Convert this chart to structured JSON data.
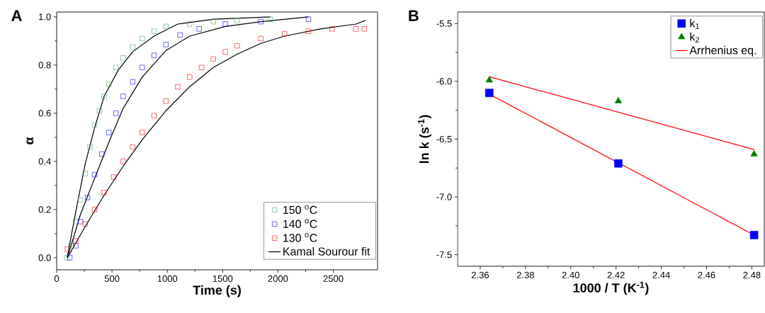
{
  "chart_data": [
    {
      "type": "scatter",
      "title": "A",
      "xlabel": "Time (s)",
      "ylabel": "α",
      "xlim": [
        0,
        2900
      ],
      "ylim": [
        -0.05,
        1.02
      ],
      "xticks": [
        0,
        500,
        1000,
        1500,
        2000,
        2500
      ],
      "yticks": [
        {
          "value": 0,
          "label": "0.0"
        },
        0.2,
        0.4,
        0.6,
        0.8,
        {
          "value": 1,
          "label": "1.0"
        }
      ],
      "legend": "bottom right",
      "marker": "square",
      "series": [
        {
          "name": "150 $^{o}$C",
          "color": "#3aa860",
          "x": [
            92,
            129,
            172,
            215,
            258,
            300,
            343,
            386,
            429,
            472,
            536,
            601,
            687,
            773,
            880,
            987,
            1202,
            1416,
            1631,
            1931
          ],
          "values": [
            0,
            0.05,
            0.15,
            0.24,
            0.35,
            0.46,
            0.55,
            0.61,
            0.67,
            0.72,
            0.79,
            0.83,
            0.875,
            0.91,
            0.94,
            0.96,
            0.97,
            0.98,
            0.985,
            0.99
          ]
        },
        {
          "name": "140 $^{o}$C",
          "color": "#0000ff",
          "x": [
            118,
            172,
            215,
            279,
            343,
            408,
            472,
            536,
            601,
            687,
            773,
            880,
            987,
            1116,
            1288,
            1524,
            1845,
            2275
          ],
          "values": [
            0,
            0.05,
            0.15,
            0.25,
            0.345,
            0.43,
            0.52,
            0.6,
            0.67,
            0.73,
            0.79,
            0.84,
            0.885,
            0.925,
            0.95,
            0.97,
            0.98,
            0.99
          ]
        },
        {
          "name": "130 $^{o}$C",
          "color": "#ff0000",
          "x": [
            97,
            172,
            258,
            343,
            429,
            515,
            601,
            687,
            773,
            880,
            987,
            1094,
            1202,
            1309,
            1416,
            1524,
            1631,
            1845,
            2060,
            2275,
            2489,
            2704,
            2780
          ],
          "values": [
            0.036,
            0.07,
            0.14,
            0.2,
            0.27,
            0.335,
            0.4,
            0.46,
            0.52,
            0.59,
            0.65,
            0.71,
            0.75,
            0.79,
            0.825,
            0.855,
            0.88,
            0.91,
            0.93,
            0.94,
            0.95,
            0.95,
            0.95
          ]
        },
        {
          "name": "Kamal Sourour fit",
          "type": "line",
          "marker": "none",
          "color": "#000000",
          "x": [
            95,
            172,
            258,
            343,
            429,
            558,
            687,
            880,
            1094,
            1416,
            1931
          ],
          "values": [
            0,
            0.19,
            0.39,
            0.54,
            0.67,
            0.78,
            0.855,
            0.92,
            0.97,
            0.99,
            1.0
          ]
        },
        {
          "type": "line",
          "marker": "none",
          "color": "#000000",
          "x": [
            97,
            215,
            343,
            472,
            601,
            773,
            987,
            1202,
            1524,
            1845,
            2275
          ],
          "values": [
            0,
            0.18,
            0.33,
            0.48,
            0.62,
            0.75,
            0.86,
            0.92,
            0.96,
            0.98,
            1.0
          ]
        },
        {
          "type": "line",
          "marker": "none",
          "color": "#000000",
          "x": [
            97,
            258,
            429,
            601,
            773,
            987,
            1202,
            1416,
            1631,
            1845,
            2060,
            2382,
            2704,
            2790
          ],
          "values": [
            0,
            0.13,
            0.26,
            0.38,
            0.49,
            0.61,
            0.71,
            0.79,
            0.845,
            0.89,
            0.92,
            0.95,
            0.97,
            0.985
          ]
        }
      ]
    },
    {
      "type": "scatter",
      "title": "B",
      "xlabel": "1000 / T (K$^{-1}$)",
      "ylabel": "ln k (s$^{-1}$)",
      "xlim": [
        2.35,
        2.4855
      ],
      "ylim": [
        -7.6,
        -5.4
      ],
      "xticks": [
        2.36,
        2.38,
        {
          "value": 2.4,
          "label": "2.40"
        },
        2.42,
        2.44,
        2.46,
        2.48
      ],
      "yticks": [
        -5.5,
        {
          "value": -6,
          "label": "-6.0"
        },
        -6.5,
        {
          "value": -7,
          "label": "-7.0"
        },
        -7.5
      ],
      "legend": "top right",
      "series": [
        {
          "name": "k$_{1}$",
          "marker": "square",
          "color": "#0000ff",
          "x": [
            2.364,
            2.421,
            2.481
          ],
          "values": [
            -6.1,
            -6.71,
            -7.33
          ]
        },
        {
          "name": "k$_{2}$",
          "marker": "triangle",
          "color": "#008000",
          "x": [
            2.364,
            2.421,
            2.481
          ],
          "values": [
            -5.99,
            -6.17,
            -6.63
          ]
        },
        {
          "name": "Arrhenius eq.",
          "type": "line",
          "marker": "none",
          "color": "#ff0000",
          "x": [
            2.364,
            2.481
          ],
          "values": [
            -5.96,
            -6.59
          ]
        },
        {
          "type": "line",
          "marker": "none",
          "color": "#ff0000",
          "x": [
            2.364,
            2.481
          ],
          "values": [
            -6.11,
            -7.33
          ]
        }
      ]
    }
  ]
}
